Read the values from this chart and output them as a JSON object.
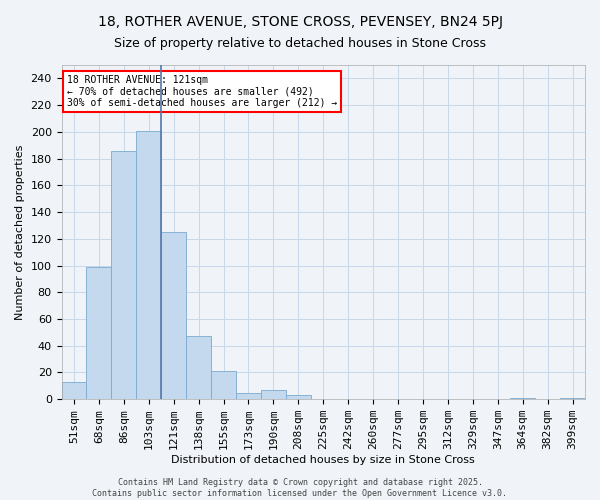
{
  "title": "18, ROTHER AVENUE, STONE CROSS, PEVENSEY, BN24 5PJ",
  "subtitle": "Size of property relative to detached houses in Stone Cross",
  "bar_color": "#c5d9ee",
  "bar_edge_color": "#7aaad0",
  "bin_labels": [
    "51sqm",
    "68sqm",
    "86sqm",
    "103sqm",
    "121sqm",
    "138sqm",
    "155sqm",
    "173sqm",
    "190sqm",
    "208sqm",
    "225sqm",
    "242sqm",
    "260sqm",
    "277sqm",
    "295sqm",
    "312sqm",
    "329sqm",
    "347sqm",
    "364sqm",
    "382sqm",
    "399sqm"
  ],
  "bar_values": [
    13,
    99,
    186,
    201,
    125,
    47,
    21,
    5,
    7,
    3,
    0,
    0,
    0,
    0,
    0,
    0,
    0,
    0,
    1,
    0,
    1
  ],
  "highlight_index": 4,
  "vline_color": "#5577aa",
  "ylabel": "Number of detached properties",
  "xlabel": "Distribution of detached houses by size in Stone Cross",
  "ylim": [
    0,
    250
  ],
  "yticks": [
    0,
    20,
    40,
    60,
    80,
    100,
    120,
    140,
    160,
    180,
    200,
    220,
    240
  ],
  "annotation_box_title": "18 ROTHER AVENUE: 121sqm",
  "annotation_line1": "← 70% of detached houses are smaller (492)",
  "annotation_line2": "30% of semi-detached houses are larger (212) →",
  "footer_line1": "Contains HM Land Registry data © Crown copyright and database right 2025.",
  "footer_line2": "Contains public sector information licensed under the Open Government Licence v3.0.",
  "bg_color": "#f0f4f8",
  "grid_color": "#c8d8e8",
  "title_fontsize": 10,
  "subtitle_fontsize": 9,
  "axis_label_fontsize": 8,
  "tick_fontsize": 8,
  "annotation_fontsize": 7,
  "footer_fontsize": 6
}
